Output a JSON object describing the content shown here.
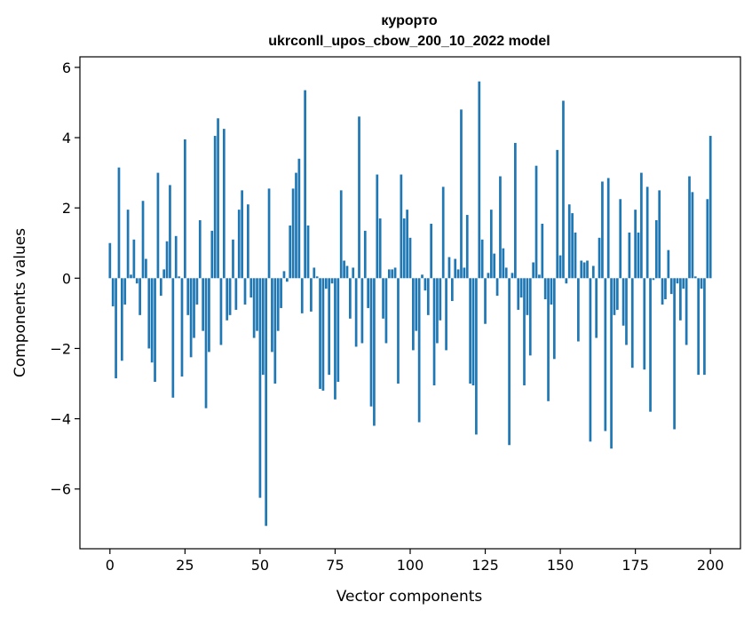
{
  "chart_data": {
    "type": "bar",
    "title_line1": "курорто",
    "title_line2": "ukrconll_upos_cbow_200_10_2022 model",
    "xlabel": "Vector components",
    "ylabel": "Components values",
    "xlim": [
      -10,
      210
    ],
    "ylim": [
      -7.7,
      6.3
    ],
    "xticks": [
      0,
      25,
      50,
      75,
      100,
      125,
      150,
      175,
      200
    ],
    "yticks": [
      -6,
      -4,
      -2,
      0,
      2,
      4,
      6
    ],
    "ytick_labels": [
      "−6",
      "−4",
      "−2",
      "0",
      "2",
      "4",
      "6"
    ],
    "bar_color": "#1f77b4",
    "values": [
      1.0,
      -0.8,
      -2.85,
      3.15,
      -2.35,
      -0.75,
      1.95,
      0.1,
      1.1,
      -0.15,
      -1.05,
      2.2,
      0.55,
      -2.0,
      -2.4,
      -2.95,
      3.0,
      -0.5,
      0.25,
      1.05,
      2.65,
      -3.4,
      1.2,
      0.05,
      -2.8,
      3.95,
      -1.05,
      -2.25,
      -1.7,
      -0.75,
      1.65,
      -1.5,
      -3.7,
      -2.1,
      1.35,
      4.05,
      4.55,
      -1.9,
      4.25,
      -1.2,
      -1.05,
      1.1,
      -0.9,
      1.95,
      2.5,
      -0.75,
      2.1,
      -0.55,
      -1.7,
      -1.5,
      -6.25,
      -2.75,
      -7.05,
      2.55,
      -2.1,
      -3.0,
      -1.5,
      -0.85,
      0.2,
      -0.1,
      1.5,
      2.55,
      3.0,
      3.4,
      -1.0,
      5.35,
      1.5,
      -0.95,
      0.3,
      0.05,
      -3.15,
      -3.2,
      -0.3,
      -2.75,
      -0.15,
      -3.45,
      -2.95,
      2.5,
      0.5,
      0.35,
      -1.15,
      0.3,
      -1.95,
      4.6,
      -1.85,
      1.35,
      -0.85,
      -3.65,
      -4.2,
      2.95,
      1.7,
      -1.15,
      -1.85,
      0.25,
      0.25,
      0.3,
      -3.0,
      2.95,
      1.7,
      1.95,
      1.15,
      -2.05,
      -1.5,
      -4.1,
      0.1,
      -0.35,
      -1.05,
      1.55,
      -3.05,
      -1.85,
      -1.2,
      2.6,
      -2.05,
      0.6,
      -0.65,
      0.55,
      0.25,
      4.8,
      0.3,
      1.8,
      -3.0,
      -3.05,
      -4.45,
      5.6,
      1.1,
      -1.3,
      0.15,
      1.95,
      0.7,
      -0.5,
      2.9,
      0.85,
      0.3,
      -4.75,
      0.15,
      3.85,
      -0.9,
      -0.55,
      -3.05,
      -1.05,
      -2.2,
      0.45,
      3.2,
      0.1,
      1.55,
      -0.6,
      -3.5,
      -0.75,
      -2.3,
      3.65,
      0.65,
      5.05,
      -0.15,
      2.1,
      1.85,
      1.3,
      -1.8,
      0.5,
      0.45,
      0.5,
      -4.65,
      0.35,
      -1.7,
      1.15,
      2.75,
      -4.35,
      2.85,
      -4.85,
      -1.05,
      -0.9,
      2.25,
      -1.35,
      -1.9,
      1.3,
      -2.55,
      1.95,
      1.3,
      3.0,
      -2.6,
      2.6,
      -3.8,
      -0.05,
      1.65,
      2.5,
      -0.75,
      -0.6,
      0.8,
      -0.45,
      -4.3,
      -0.15,
      -1.2,
      -0.3,
      -1.9,
      2.9,
      2.45,
      0.05,
      -2.75,
      -0.3,
      -2.75,
      2.25,
      4.05
    ]
  }
}
